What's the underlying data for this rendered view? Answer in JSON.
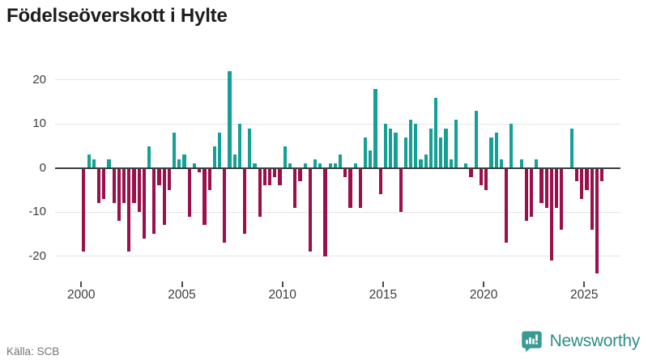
{
  "title": "Födelseöverskott i Hylte",
  "source": "Källa: SCB",
  "logo": {
    "text": "Newsworthy"
  },
  "y_axis": {
    "tick_values": [
      20,
      10,
      0,
      -10,
      -20
    ],
    "tick_labels": [
      "20",
      "10",
      "0",
      "-10",
      "-20"
    ]
  },
  "x_axis": {
    "tick_years": [
      2000,
      2005,
      2010,
      2015,
      2020,
      2025
    ],
    "tick_labels": [
      "2000",
      "2005",
      "2010",
      "2015",
      "2020",
      "2025"
    ]
  },
  "colors": {
    "positive": "#14a095",
    "negative": "#9b104b",
    "grid": "#e4e4e4",
    "axis": "#3e3e3e",
    "text": "#3c3c3c",
    "muted": "#73737b",
    "brand": "#2e8d89"
  },
  "chart_data": {
    "type": "bar",
    "title": "Födelseöverskott i Hylte",
    "xlabel": "",
    "ylabel": "",
    "ylim": [
      -25,
      23
    ],
    "grid": "horizontal",
    "frequency": "quarterly",
    "start_period": "2000 Q1",
    "end_period": "2025 Q4",
    "series": [
      {
        "name": "Födelseöverskott",
        "values": [
          -19,
          3,
          2,
          -8,
          -7,
          2,
          -8,
          -12,
          -8,
          -19,
          -8,
          -10,
          -16,
          5,
          -15,
          -4,
          -13,
          -5,
          8,
          2,
          3,
          -11,
          1,
          -1,
          -13,
          -5,
          5,
          8,
          -17,
          22,
          3,
          10,
          -15,
          9,
          1,
          -11,
          -4,
          -4,
          -2,
          -4,
          5,
          1,
          -9,
          -3,
          1,
          -19,
          2,
          1,
          -20,
          1,
          1,
          3,
          -2,
          -9,
          1,
          -9,
          7,
          4,
          18,
          -6,
          10,
          9,
          8,
          -10,
          7,
          11,
          10,
          2,
          3,
          9,
          16,
          7,
          9,
          2,
          11,
          0,
          1,
          -2,
          13,
          -4,
          -5,
          7,
          8,
          2,
          -17,
          10,
          0,
          2,
          -12,
          -11,
          2,
          -8,
          -9,
          -21,
          -9,
          -14,
          0,
          9,
          -3,
          -7,
          -5,
          -14,
          -24,
          -3
        ]
      }
    ]
  }
}
